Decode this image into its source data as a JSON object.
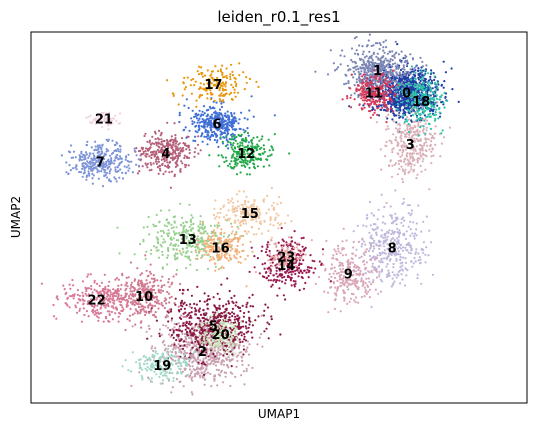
{
  "chart_data": {
    "type": "scatter",
    "title": "leiden_r0.1_res1",
    "xlabel": "UMAP1",
    "ylabel": "UMAP2",
    "grid": false,
    "ticks": false,
    "clusters": [
      {
        "id": "0",
        "x": 0.35,
        "y": 0.8,
        "color": "#1f3fa6"
      },
      {
        "id": "1",
        "x": -0.05,
        "y": 0.93,
        "color": "#7b86b5"
      },
      {
        "id": "2",
        "x": -2.45,
        "y": -0.7,
        "color": "#c9a0b0"
      },
      {
        "id": "3",
        "x": 0.4,
        "y": 0.5,
        "color": "#d9b0b8"
      },
      {
        "id": "4",
        "x": -2.95,
        "y": 0.45,
        "color": "#b5607a"
      },
      {
        "id": "5",
        "x": -2.3,
        "y": -0.55,
        "color": "#8a1845"
      },
      {
        "id": "6",
        "x": -2.25,
        "y": 0.62,
        "color": "#3f6fd6"
      },
      {
        "id": "7",
        "x": -3.85,
        "y": 0.4,
        "color": "#7d93d9"
      },
      {
        "id": "8",
        "x": 0.15,
        "y": -0.1,
        "color": "#c0b7dc"
      },
      {
        "id": "9",
        "x": -0.45,
        "y": -0.25,
        "color": "#d8a6b8"
      },
      {
        "id": "10",
        "x": -3.25,
        "y": -0.38,
        "color": "#d07a90"
      },
      {
        "id": "11",
        "x": -0.1,
        "y": 0.8,
        "color": "#d63a5a"
      },
      {
        "id": "12",
        "x": -1.85,
        "y": 0.45,
        "color": "#22a84a"
      },
      {
        "id": "13",
        "x": -2.65,
        "y": -0.05,
        "color": "#98d090"
      },
      {
        "id": "14",
        "x": -1.3,
        "y": -0.2,
        "color": "#9a1850"
      },
      {
        "id": "15",
        "x": -1.8,
        "y": 0.1,
        "color": "#f0c7a0"
      },
      {
        "id": "16",
        "x": -2.2,
        "y": -0.1,
        "color": "#f5b07a"
      },
      {
        "id": "17",
        "x": -2.3,
        "y": 0.85,
        "color": "#e8960c"
      },
      {
        "id": "18",
        "x": 0.55,
        "y": 0.75,
        "color": "#2cc4a8"
      },
      {
        "id": "19",
        "x": -3.0,
        "y": -0.78,
        "color": "#9fd9c8"
      },
      {
        "id": "20",
        "x": -2.2,
        "y": -0.6,
        "color": "#c8e8b8"
      },
      {
        "id": "21",
        "x": -3.8,
        "y": 0.65,
        "color": "#f0d0e0"
      },
      {
        "id": "22",
        "x": -3.9,
        "y": -0.4,
        "color": "#d87896"
      },
      {
        "id": "23",
        "x": -1.3,
        "y": -0.15,
        "color": "#e8b0a8"
      }
    ]
  }
}
